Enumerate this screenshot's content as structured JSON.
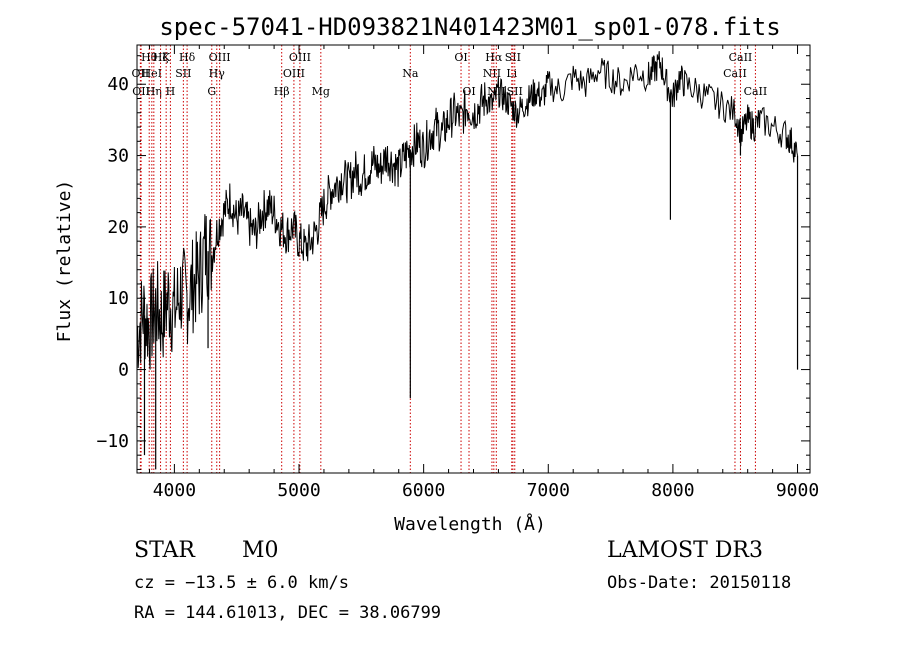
{
  "chart_data": {
    "type": "line",
    "title": "spec-57041-HD093821N401423M01_sp01-078.fits",
    "xlabel": "Wavelength (Å)",
    "ylabel": "Flux (relative)",
    "xlim": [
      3700,
      9100
    ],
    "ylim": [
      -14.5,
      45.5
    ],
    "xticks": [
      4000,
      5000,
      6000,
      7000,
      8000,
      9000
    ],
    "yticks": [
      -10,
      0,
      10,
      20,
      30,
      40
    ],
    "series": [
      {
        "name": "flux",
        "x": [
          3700,
          3750,
          3800,
          3850,
          3900,
          3950,
          4000,
          4050,
          4100,
          4150,
          4200,
          4250,
          4300,
          4350,
          4400,
          4450,
          4500,
          4550,
          4600,
          4650,
          4700,
          4750,
          4800,
          4850,
          4900,
          4950,
          5000,
          5050,
          5100,
          5150,
          5200,
          5250,
          5300,
          5350,
          5400,
          5450,
          5500,
          5550,
          5600,
          5650,
          5700,
          5750,
          5800,
          5850,
          5900,
          5950,
          6000,
          6050,
          6100,
          6150,
          6200,
          6250,
          6300,
          6350,
          6400,
          6450,
          6500,
          6550,
          6600,
          6650,
          6700,
          6750,
          6800,
          6850,
          6900,
          6950,
          7000,
          7100,
          7200,
          7300,
          7400,
          7500,
          7600,
          7700,
          7800,
          7850,
          7900,
          7950,
          8000,
          8050,
          8100,
          8200,
          8300,
          8400,
          8500,
          8550,
          8600,
          8650,
          8700,
          8800,
          8900,
          8950,
          9000
        ],
        "y": [
          5,
          8,
          6,
          9,
          7,
          10,
          8,
          11,
          10,
          12,
          13,
          17,
          16,
          20,
          22,
          24,
          21,
          22,
          20,
          19,
          22,
          23,
          22,
          20,
          19,
          20,
          18,
          17,
          18,
          20,
          23,
          25,
          26,
          27,
          26,
          28,
          27,
          28,
          29,
          28,
          30,
          29,
          28,
          30,
          31,
          32,
          31,
          33,
          34,
          33,
          35,
          36,
          35,
          37,
          36,
          37,
          38,
          37,
          39,
          38,
          37,
          36,
          37,
          38,
          39,
          38,
          40,
          39,
          41,
          40,
          42,
          41,
          40,
          42,
          41,
          42,
          43,
          40,
          38,
          41,
          40,
          39,
          38,
          37,
          36,
          33,
          35,
          34,
          35,
          34,
          33,
          32,
          30
        ],
        "spikes": [
          {
            "x": 3760,
            "y": -12
          },
          {
            "x": 3850,
            "y": -14
          },
          {
            "x": 4270,
            "y": 3
          },
          {
            "x": 5893,
            "y": -4
          },
          {
            "x": 7980,
            "y": 21
          },
          {
            "x": 8542,
            "y": 30
          },
          {
            "x": 9000,
            "y": 0
          }
        ]
      }
    ],
    "lines": [
      {
        "x": 3727,
        "label": "OII",
        "row": 2
      },
      {
        "x": 3733,
        "label": "OII",
        "row": 3
      },
      {
        "x": 3798,
        "label": "Hθ",
        "row": 1
      },
      {
        "x": 3819,
        "label": "HeI",
        "row": 2
      },
      {
        "x": 3835,
        "label": "Hη",
        "row": 3
      },
      {
        "x": 3889,
        "label": "Hζ",
        "row": 1
      },
      {
        "x": 3934,
        "label": "K",
        "row": 1
      },
      {
        "x": 3968,
        "label": "H",
        "row": 3
      },
      {
        "x": 4072,
        "label": "SII",
        "row": 2
      },
      {
        "x": 4102,
        "label": "Hδ",
        "row": 1
      },
      {
        "x": 4300,
        "label": "G",
        "row": 3
      },
      {
        "x": 4340,
        "label": "Hγ",
        "row": 2
      },
      {
        "x": 4363,
        "label": "OIII",
        "row": 1
      },
      {
        "x": 4861,
        "label": "Hβ",
        "row": 3
      },
      {
        "x": 4959,
        "label": "OIII",
        "row": 2
      },
      {
        "x": 5007,
        "label": "OIII",
        "row": 1
      },
      {
        "x": 5175,
        "label": "Mg",
        "row": 3
      },
      {
        "x": 5893,
        "label": "Na",
        "row": 2
      },
      {
        "x": 6300,
        "label": "OI",
        "row": 1
      },
      {
        "x": 6364,
        "label": "OI",
        "row": 3
      },
      {
        "x": 6548,
        "label": "NII",
        "row": 2
      },
      {
        "x": 6563,
        "label": "Hα",
        "row": 1
      },
      {
        "x": 6583,
        "label": "NII",
        "row": 3
      },
      {
        "x": 6707,
        "label": "Li",
        "row": 2
      },
      {
        "x": 6716,
        "label": "SII",
        "row": 1
      },
      {
        "x": 6731,
        "label": "SII",
        "row": 3
      },
      {
        "x": 8498,
        "label": "CaII",
        "row": 2
      },
      {
        "x": 8542,
        "label": "CaII",
        "row": 1
      },
      {
        "x": 8662,
        "label": "CaII",
        "row": 3
      }
    ]
  },
  "info": {
    "class": "STAR",
    "subclass": "M0",
    "survey": "LAMOST DR3",
    "cz": "cz = −13.5 ± 6.0 km/s",
    "obs_date": "Obs-Date: 20150118",
    "coords": "RA = 144.61013, DEC =  38.06799"
  }
}
